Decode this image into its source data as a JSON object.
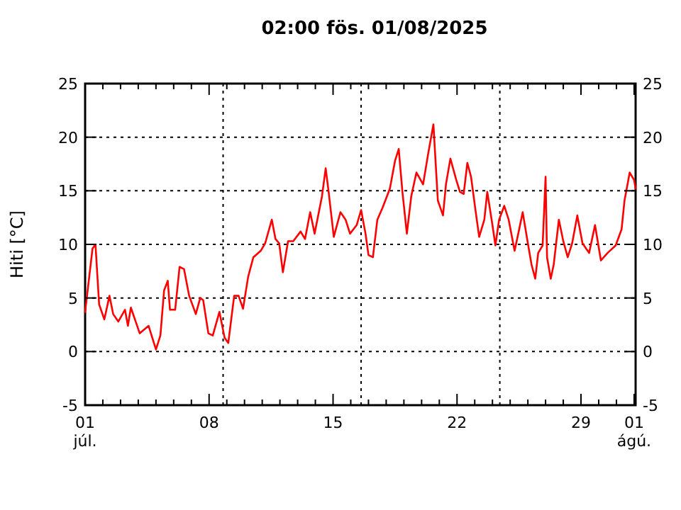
{
  "chart_data": {
    "type": "line",
    "title": "02:00   fös.  01/08/2025",
    "ylabel": "Hiti [°C]",
    "x": [
      "2025-07-01T00:00",
      "2025-07-01T10:00",
      "2025-07-01T14:00",
      "2025-07-01T19:00",
      "2025-07-02T02:00",
      "2025-07-02T09:00",
      "2025-07-02T14:00",
      "2025-07-02T21:00",
      "2025-07-03T06:00",
      "2025-07-03T10:00",
      "2025-07-03T14:00",
      "2025-07-04T02:00",
      "2025-07-04T14:00",
      "2025-07-05T00:00",
      "2025-07-05T06:00",
      "2025-07-05T11:00",
      "2025-07-05T16:00",
      "2025-07-05T19:00",
      "2025-07-06T02:00",
      "2025-07-06T08:00",
      "2025-07-06T14:00",
      "2025-07-06T21:00",
      "2025-07-07T06:00",
      "2025-07-07T12:00",
      "2025-07-07T16:00",
      "2025-07-07T23:00",
      "2025-07-08T05:00",
      "2025-07-08T14:00",
      "2025-07-08T21:00",
      "2025-07-09T02:00",
      "2025-07-09T10:00",
      "2025-07-09T16:00",
      "2025-07-09T22:00",
      "2025-07-10T05:00",
      "2025-07-10T12:00",
      "2025-07-10T22:00",
      "2025-07-11T04:00",
      "2025-07-11T13:00",
      "2025-07-11T18:00",
      "2025-07-11T23:00",
      "2025-07-12T04:00",
      "2025-07-12T11:00",
      "2025-07-12T18:00",
      "2025-07-13T04:00",
      "2025-07-13T10:00",
      "2025-07-13T17:00",
      "2025-07-13T23:00",
      "2025-07-14T09:00",
      "2025-07-14T14:00",
      "2025-07-14T18:00",
      "2025-07-15T01:00",
      "2025-07-15T10:00",
      "2025-07-15T17:00",
      "2025-07-15T23:00",
      "2025-07-16T08:00",
      "2025-07-16T14:00",
      "2025-07-16T20:00",
      "2025-07-17T00:00",
      "2025-07-17T06:00",
      "2025-07-17T12:00",
      "2025-07-17T19:00",
      "2025-07-18T05:00",
      "2025-07-18T12:00",
      "2025-07-18T17:00",
      "2025-07-18T22:00",
      "2025-07-19T04:00",
      "2025-07-19T10:00",
      "2025-07-19T17:00",
      "2025-07-20T02:00",
      "2025-07-20T09:00",
      "2025-07-20T16:00",
      "2025-07-20T22:00",
      "2025-07-21T05:00",
      "2025-07-21T09:00",
      "2025-07-21T15:00",
      "2025-07-21T23:00",
      "2025-07-22T04:00",
      "2025-07-22T09:00",
      "2025-07-22T14:00",
      "2025-07-22T19:00",
      "2025-07-23T01:00",
      "2025-07-23T06:00",
      "2025-07-23T13:00",
      "2025-07-23T17:00",
      "2025-07-24T00:00",
      "2025-07-24T04:00",
      "2025-07-24T09:00",
      "2025-07-24T16:00",
      "2025-07-24T22:00",
      "2025-07-25T06:00",
      "2025-07-25T11:00",
      "2025-07-25T17:00",
      "2025-07-26T00:00",
      "2025-07-26T05:00",
      "2025-07-26T10:00",
      "2025-07-26T14:00",
      "2025-07-26T20:00",
      "2025-07-27T00:00",
      "2025-07-27T02:00",
      "2025-07-27T07:00",
      "2025-07-27T11:00",
      "2025-07-27T18:00",
      "2025-07-28T00:00",
      "2025-07-28T06:00",
      "2025-07-28T12:00",
      "2025-07-28T19:00",
      "2025-07-29T02:00",
      "2025-07-29T11:00",
      "2025-07-29T19:00",
      "2025-07-30T03:00",
      "2025-07-30T12:00",
      "2025-07-30T23:00",
      "2025-07-31T07:00",
      "2025-07-31T11:00",
      "2025-07-31T18:00",
      "2025-08-01T00:00",
      "2025-08-01T02:00"
    ],
    "series": [
      {
        "color": "#ff0000",
        "values": [
          3.7,
          9.6,
          10,
          4.4,
          3.0,
          5.2,
          3.5,
          2.8,
          3.9,
          2.4,
          4.1,
          1.7,
          2.4,
          0.2,
          1.5,
          5.7,
          6.6,
          3.9,
          3.9,
          7.9,
          7.7,
          5.2,
          3.5,
          5.0,
          4.8,
          1.7,
          1.5,
          3.7,
          1.3,
          0.8,
          5.2,
          5.2,
          4.0,
          7.0,
          8.8,
          9.4,
          10.1,
          12.3,
          10.5,
          10.1,
          7.4,
          10.3,
          10.3,
          11.2,
          10.5,
          13.0,
          11.0,
          14.5,
          17.1,
          14.9,
          10.7,
          13.0,
          12.3,
          11.0,
          11.8,
          13.2,
          11.0,
          9.0,
          8.8,
          12.3,
          13.4,
          15.2,
          17.8,
          18.9,
          14.9,
          11.0,
          14.5,
          16.7,
          15.6,
          18.5,
          21.2,
          14.1,
          12.7,
          15.6,
          18.0,
          16.0,
          14.9,
          14.7,
          17.6,
          16.3,
          13.2,
          10.7,
          12.3,
          14.9,
          11.8,
          9.9,
          12.3,
          13.6,
          12.3,
          9.4,
          11.0,
          13.0,
          10.1,
          8.1,
          6.8,
          9.2,
          9.9,
          16.3,
          8.8,
          6.8,
          8.1,
          12.3,
          10.3,
          8.8,
          10.1,
          12.7,
          10.1,
          9.2,
          11.8,
          8.5,
          9.2,
          9.9,
          11.4,
          14.1,
          16.7,
          16.0,
          15.2
        ]
      }
    ],
    "xlim": [
      "2025-07-01T00:00",
      "2025-08-01T02:00"
    ],
    "xticks": [
      {
        "value": "2025-07-01",
        "label": "01\njúl."
      },
      {
        "value": "2025-07-02",
        "label": null
      },
      {
        "value": "2025-07-03",
        "label": null
      },
      {
        "value": "2025-07-04",
        "label": null
      },
      {
        "value": "2025-07-05",
        "label": null
      },
      {
        "value": "2025-07-06",
        "label": null
      },
      {
        "value": "2025-07-07",
        "label": null
      },
      {
        "value": "2025-07-08",
        "label": "08"
      },
      {
        "value": "2025-07-09",
        "label": null
      },
      {
        "value": "2025-07-10",
        "label": null
      },
      {
        "value": "2025-07-11",
        "label": null
      },
      {
        "value": "2025-07-12",
        "label": null
      },
      {
        "value": "2025-07-13",
        "label": null
      },
      {
        "value": "2025-07-14",
        "label": null
      },
      {
        "value": "2025-07-15",
        "label": "15"
      },
      {
        "value": "2025-07-16",
        "label": null
      },
      {
        "value": "2025-07-17",
        "label": null
      },
      {
        "value": "2025-07-18",
        "label": null
      },
      {
        "value": "2025-07-19",
        "label": null
      },
      {
        "value": "2025-07-20",
        "label": null
      },
      {
        "value": "2025-07-21",
        "label": null
      },
      {
        "value": "2025-07-22",
        "label": "22"
      },
      {
        "value": "2025-07-23",
        "label": null
      },
      {
        "value": "2025-07-24",
        "label": null
      },
      {
        "value": "2025-07-25",
        "label": null
      },
      {
        "value": "2025-07-26",
        "label": null
      },
      {
        "value": "2025-07-27",
        "label": null
      },
      {
        "value": "2025-07-28",
        "label": null
      },
      {
        "value": "2025-07-29",
        "label": "29"
      },
      {
        "value": "2025-07-30",
        "label": null
      },
      {
        "value": "2025-07-31",
        "label": null
      },
      {
        "value": "2025-08-01",
        "label": "01\nágú."
      }
    ],
    "ylim": [
      -5,
      25
    ],
    "yticks": [
      -5,
      0,
      5,
      10,
      15,
      20,
      25
    ],
    "y2lim": [
      -5,
      25
    ],
    "y2ticks": [
      -5,
      0,
      5,
      10,
      15,
      20,
      25
    ],
    "grid": "y",
    "line_style": "solid",
    "marker": "none",
    "ref_lines": [
      {
        "axis": "x",
        "value": "2025-07-08T19:00",
        "color": "#000000",
        "line_style": "dotted"
      },
      {
        "axis": "x",
        "value": "2025-07-16T14:00",
        "color": "#000000",
        "line_style": "dotted"
      },
      {
        "axis": "x",
        "value": "2025-07-24T10:00",
        "color": "#000000",
        "line_style": "dotted"
      }
    ]
  }
}
